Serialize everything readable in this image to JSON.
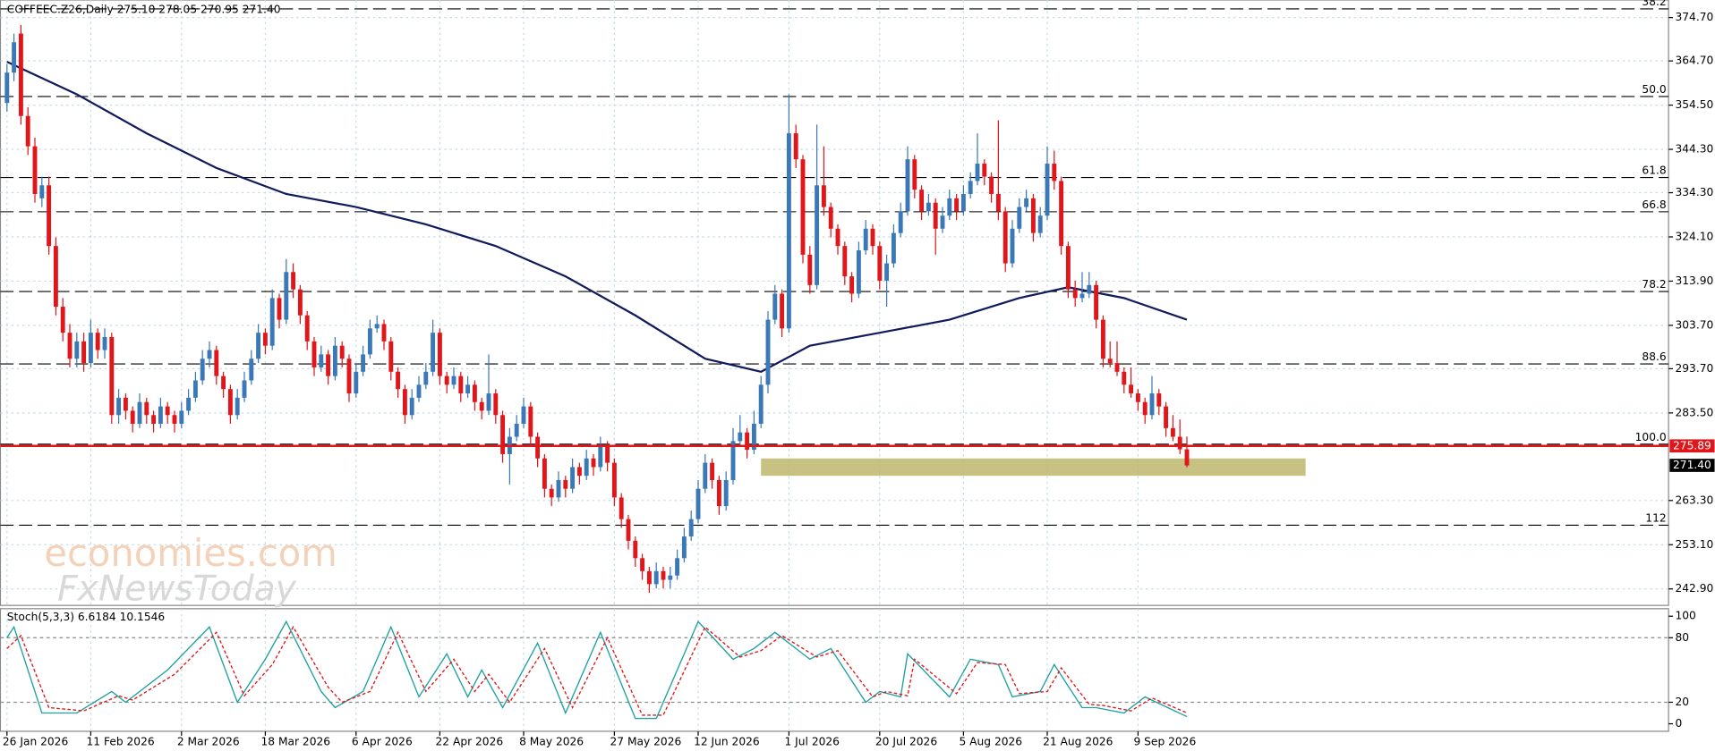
{
  "chart_data": {
    "type": "candlestick",
    "title": "COFFEEC.Z26,Daily  275.10 278.05 270.95 271.40",
    "watermark": [
      "economies.com",
      "FxNewsToday"
    ],
    "categories": [
      "26 Jan 2026",
      null,
      null,
      null,
      null,
      null,
      null,
      null,
      null,
      null,
      null,
      null,
      "11 Feb 2026",
      null,
      null,
      null,
      null,
      null,
      null,
      null,
      null,
      null,
      null,
      null,
      null,
      "2 Mar 2026",
      null,
      null,
      null,
      null,
      null,
      null,
      null,
      null,
      null,
      null,
      null,
      "18 Mar 2026",
      null,
      null,
      null,
      null,
      null,
      null,
      null,
      null,
      null,
      null,
      null,
      null,
      "6 Apr 2026",
      null,
      null,
      null,
      null,
      null,
      null,
      null,
      null,
      null,
      null,
      null,
      "22 Apr 2026",
      null,
      null,
      null,
      null,
      null,
      null,
      null,
      null,
      null,
      null,
      null,
      "8 May 2026",
      null,
      null,
      null,
      null,
      null,
      null,
      null,
      null,
      null,
      null,
      null,
      null,
      "27 May 2026",
      null,
      null,
      null,
      null,
      null,
      null,
      null,
      null,
      null,
      null,
      null,
      "12 Jun 2026",
      null,
      null,
      null,
      null,
      null,
      null,
      null,
      null,
      null,
      null,
      null,
      null,
      "1 Jul 2026",
      null,
      null,
      null,
      null,
      null,
      null,
      null,
      null,
      null,
      null,
      null,
      null,
      "20 Jul 2026",
      null,
      null,
      null,
      null,
      null,
      null,
      null,
      null,
      null,
      null,
      null,
      "5 Aug 2026",
      null,
      null,
      null,
      null,
      null,
      null,
      null,
      null,
      null,
      null,
      null,
      "21 Aug 2026",
      null,
      null,
      null,
      null,
      null,
      null,
      null,
      null,
      null,
      null,
      null,
      null,
      "9 Sep 2026",
      null,
      null,
      null,
      null,
      null,
      null,
      null
    ],
    "candles": [
      [
        355,
        364,
        353,
        362
      ],
      [
        362,
        371,
        360,
        369
      ],
      [
        371,
        373,
        350,
        352
      ],
      [
        352,
        354,
        343,
        345
      ],
      [
        345,
        347,
        332,
        334
      ],
      [
        333,
        338,
        331,
        336
      ],
      [
        336,
        338,
        320,
        322
      ],
      [
        322,
        324,
        306,
        308
      ],
      [
        308,
        310,
        300,
        302
      ],
      [
        302,
        304,
        294,
        296
      ],
      [
        296,
        302,
        294,
        300
      ],
      [
        300,
        302,
        293,
        295
      ],
      [
        295,
        305,
        294,
        302
      ],
      [
        302,
        303,
        296,
        298
      ],
      [
        298,
        303,
        296,
        301
      ],
      [
        301,
        302,
        281,
        283
      ],
      [
        283,
        289,
        281,
        287
      ],
      [
        287,
        288,
        282,
        284
      ],
      [
        284,
        285,
        279,
        281
      ],
      [
        281,
        288,
        280,
        286
      ],
      [
        286,
        287,
        281,
        283
      ],
      [
        283,
        284,
        279,
        281
      ],
      [
        281,
        287,
        280,
        285
      ],
      [
        285,
        286,
        281,
        283
      ],
      [
        283,
        284,
        279,
        281
      ],
      [
        281,
        286,
        280,
        284
      ],
      [
        284,
        289,
        283,
        287
      ],
      [
        287,
        293,
        286,
        291
      ],
      [
        291,
        298,
        290,
        296
      ],
      [
        296,
        300,
        294,
        298
      ],
      [
        298,
        299,
        290,
        292
      ],
      [
        292,
        293,
        287,
        289
      ],
      [
        289,
        290,
        281,
        283
      ],
      [
        283,
        289,
        282,
        287
      ],
      [
        287,
        293,
        286,
        291
      ],
      [
        291,
        298,
        290,
        296
      ],
      [
        296,
        304,
        295,
        302
      ],
      [
        302,
        303,
        297,
        299
      ],
      [
        299,
        312,
        298,
        310
      ],
      [
        310,
        311,
        303,
        305
      ],
      [
        305,
        319,
        304,
        316
      ],
      [
        316,
        318,
        310,
        312
      ],
      [
        312,
        313,
        304,
        306
      ],
      [
        306,
        307,
        298,
        300
      ],
      [
        300,
        301,
        292,
        294
      ],
      [
        294,
        299,
        293,
        297
      ],
      [
        297,
        298,
        290,
        292
      ],
      [
        292,
        301,
        291,
        299
      ],
      [
        299,
        300,
        294,
        296
      ],
      [
        296,
        297,
        286,
        288
      ],
      [
        288,
        295,
        287,
        293
      ],
      [
        293,
        299,
        292,
        297
      ],
      [
        297,
        305,
        296,
        303
      ],
      [
        303,
        306,
        302,
        304
      ],
      [
        304,
        305,
        298,
        300
      ],
      [
        300,
        301,
        291,
        293
      ],
      [
        293,
        294,
        287,
        289
      ],
      [
        289,
        290,
        281,
        283
      ],
      [
        283,
        289,
        282,
        287
      ],
      [
        287,
        292,
        286,
        290
      ],
      [
        290,
        295,
        289,
        293
      ],
      [
        293,
        305,
        292,
        302
      ],
      [
        302,
        303,
        290,
        292
      ],
      [
        292,
        293,
        288,
        290
      ],
      [
        290,
        294,
        289,
        292
      ],
      [
        292,
        293,
        286,
        288
      ],
      [
        288,
        292,
        287,
        290
      ],
      [
        290,
        291,
        284,
        286
      ],
      [
        286,
        287,
        282,
        284
      ],
      [
        284,
        297,
        283,
        288
      ],
      [
        288,
        289,
        281,
        283
      ],
      [
        283,
        284,
        272,
        274
      ],
      [
        274,
        280,
        267,
        278
      ],
      [
        278,
        283,
        277,
        281
      ],
      [
        281,
        287,
        280,
        285
      ],
      [
        285,
        286,
        276,
        278
      ],
      [
        278,
        279,
        271,
        273
      ],
      [
        273,
        274,
        264,
        266
      ],
      [
        266,
        267,
        262,
        264
      ],
      [
        264,
        270,
        263,
        268
      ],
      [
        268,
        269,
        264,
        266
      ],
      [
        266,
        273,
        265,
        271
      ],
      [
        271,
        272,
        267,
        269
      ],
      [
        269,
        275,
        268,
        273
      ],
      [
        273,
        274,
        269,
        271
      ],
      [
        271,
        278,
        270,
        276
      ],
      [
        276,
        277,
        270,
        272
      ],
      [
        272,
        273,
        262,
        264
      ],
      [
        264,
        265,
        257,
        259
      ],
      [
        259,
        260,
        252,
        254
      ],
      [
        254,
        255,
        248,
        250
      ],
      [
        250,
        251,
        245,
        247
      ],
      [
        247,
        248,
        242,
        244
      ],
      [
        244,
        249,
        243,
        247
      ],
      [
        247,
        248,
        243,
        245
      ],
      [
        245,
        248,
        243,
        246
      ],
      [
        246,
        252,
        245,
        250
      ],
      [
        250,
        257,
        249,
        255
      ],
      [
        255,
        261,
        254,
        259
      ],
      [
        259,
        268,
        258,
        266
      ],
      [
        266,
        274,
        265,
        272
      ],
      [
        272,
        273,
        266,
        268
      ],
      [
        268,
        269,
        260,
        262
      ],
      [
        262,
        270,
        261,
        268
      ],
      [
        268,
        280,
        267,
        277
      ],
      [
        277,
        283,
        276,
        279
      ],
      [
        279,
        280,
        273,
        275
      ],
      [
        275,
        284,
        274,
        281
      ],
      [
        281,
        292,
        280,
        290
      ],
      [
        290,
        307,
        288,
        305
      ],
      [
        305,
        313,
        304,
        311
      ],
      [
        311,
        312,
        301,
        303
      ],
      [
        303,
        357,
        302,
        348
      ],
      [
        348,
        350,
        340,
        342
      ],
      [
        342,
        343,
        318,
        320
      ],
      [
        320,
        322,
        311,
        313
      ],
      [
        313,
        350,
        312,
        336
      ],
      [
        336,
        345,
        329,
        331
      ],
      [
        331,
        332,
        324,
        326
      ],
      [
        326,
        327,
        320,
        322
      ],
      [
        322,
        323,
        313,
        315
      ],
      [
        315,
        316,
        309,
        311
      ],
      [
        311,
        323,
        310,
        321
      ],
      [
        321,
        328,
        320,
        326
      ],
      [
        326,
        327,
        320,
        322
      ],
      [
        322,
        323,
        312,
        314
      ],
      [
        314,
        320,
        308,
        318
      ],
      [
        318,
        327,
        317,
        325
      ],
      [
        325,
        332,
        324,
        330
      ],
      [
        330,
        345,
        329,
        342
      ],
      [
        342,
        343,
        333,
        335
      ],
      [
        335,
        336,
        328,
        330
      ],
      [
        330,
        334,
        329,
        332
      ],
      [
        332,
        333,
        320,
        326
      ],
      [
        326,
        331,
        325,
        329
      ],
      [
        329,
        335,
        328,
        333
      ],
      [
        333,
        334,
        328,
        330
      ],
      [
        330,
        336,
        329,
        334
      ],
      [
        334,
        339,
        333,
        337
      ],
      [
        337,
        348,
        336,
        341
      ],
      [
        341,
        342,
        336,
        338
      ],
      [
        338,
        339,
        332,
        334
      ],
      [
        334,
        351,
        328,
        330
      ],
      [
        330,
        331,
        316,
        318
      ],
      [
        318,
        328,
        317,
        326
      ],
      [
        326,
        333,
        325,
        331
      ],
      [
        331,
        335,
        330,
        333
      ],
      [
        333,
        334,
        323,
        325
      ],
      [
        325,
        331,
        324,
        329
      ],
      [
        329,
        345,
        328,
        341
      ],
      [
        341,
        344,
        335,
        337
      ],
      [
        337,
        338,
        320,
        322
      ],
      [
        322,
        323,
        310,
        312
      ],
      [
        312,
        314,
        308,
        310
      ],
      [
        310,
        316,
        309,
        311
      ],
      [
        311,
        316,
        310,
        313
      ],
      [
        313,
        314,
        303,
        305
      ],
      [
        305,
        306,
        294,
        296
      ],
      [
        296,
        300,
        294,
        295
      ],
      [
        295,
        300,
        292,
        293
      ],
      [
        293,
        294,
        288,
        290
      ],
      [
        290,
        294,
        287,
        288
      ],
      [
        288,
        289,
        284,
        286
      ],
      [
        286,
        287,
        281,
        283
      ],
      [
        283,
        292,
        282,
        288
      ],
      [
        288,
        289,
        283,
        285
      ],
      [
        285,
        286,
        278,
        280
      ],
      [
        280,
        283,
        277,
        278
      ],
      [
        278,
        282,
        274,
        275.1
      ],
      [
        275.1,
        278.05,
        270.95,
        271.4
      ]
    ],
    "up_color": "#3a78b8",
    "down_color": "#e0161b",
    "ylim": [
      239.1,
      378.75
    ],
    "yticks": [
      {
        "value": 374.7,
        "label": "374.70"
      },
      {
        "value": 364.7,
        "label": "364.70"
      },
      {
        "value": 354.5,
        "label": "354.50"
      },
      {
        "value": 344.3,
        "label": "344.30"
      },
      {
        "value": 334.3,
        "label": "334.30"
      },
      {
        "value": 324.1,
        "label": "324.10"
      },
      {
        "value": 313.9,
        "label": "313.90"
      },
      {
        "value": 303.7,
        "label": "303.70"
      },
      {
        "value": 293.7,
        "label": "293.70"
      },
      {
        "value": 283.5,
        "label": "283.50"
      },
      {
        "value": 263.3,
        "label": "263.30"
      },
      {
        "value": 253.1,
        "label": "253.10"
      },
      {
        "value": 242.9,
        "label": "242.90"
      }
    ],
    "grid": true,
    "moving_average": {
      "color": "#101a5c",
      "x": [
        0,
        10,
        20,
        30,
        40,
        50,
        60,
        70,
        80,
        90,
        100,
        108,
        115,
        125,
        135,
        145,
        152,
        160,
        169
      ],
      "values": [
        364.5,
        357,
        348,
        340,
        334,
        331,
        327,
        322,
        315,
        306,
        296,
        293,
        299,
        302,
        305,
        310,
        312.5,
        310,
        305
      ]
    },
    "fib_levels": [
      {
        "value": 376.7,
        "label": "38.2"
      },
      {
        "value": 356.5,
        "label": "50.0"
      },
      {
        "value": 337.8,
        "label": "61.8"
      },
      {
        "value": 329.9,
        "label": "66.8"
      },
      {
        "value": 311.5,
        "label": "78.2"
      },
      {
        "value": 294.8,
        "label": "88.6"
      },
      {
        "value": 276.3,
        "label": "100.0"
      },
      {
        "value": 257.6,
        "label": "112"
      }
    ],
    "level_line": {
      "value": 275.89,
      "color": "#e0161b"
    },
    "last_price": {
      "value": 271.4,
      "label": "271.40"
    },
    "zone": {
      "from": 269,
      "to": 273,
      "start": 108,
      "end": 186,
      "color": "#bdb76b"
    },
    "stochastic": {
      "title": "Stoch(5,3,3) 6.6184 10.1546",
      "ylim": [
        -7,
        107
      ],
      "yticks": [
        0,
        20,
        80,
        100
      ],
      "levels": [
        20,
        80
      ],
      "main": {
        "color": "#1ea0a0",
        "x": [
          0,
          1,
          5,
          10,
          15,
          17,
          23,
          29,
          33,
          37,
          40,
          45,
          47,
          51,
          55,
          59,
          63,
          66,
          68,
          71,
          76,
          80,
          85,
          90,
          93,
          99,
          104,
          107,
          110,
          115,
          118,
          123,
          125,
          128,
          129,
          135,
          138,
          142,
          144,
          148,
          150,
          154,
          156,
          160,
          163,
          169
        ],
        "values": [
          80,
          90,
          10,
          10,
          30,
          20,
          50,
          90,
          20,
          60,
          95,
          30,
          15,
          30,
          90,
          25,
          65,
          25,
          50,
          15,
          75,
          10,
          85,
          5,
          5,
          95,
          60,
          70,
          85,
          60,
          70,
          20,
          30,
          25,
          65,
          25,
          60,
          55,
          25,
          30,
          55,
          15,
          15,
          10,
          25,
          6.6184
        ]
      },
      "signal": {
        "color": "#e0161b",
        "x": [
          0,
          2,
          6,
          11,
          16,
          18,
          24,
          30,
          34,
          38,
          41,
          46,
          48,
          52,
          56,
          60,
          64,
          67,
          69,
          72,
          77,
          81,
          86,
          91,
          94,
          100,
          105,
          108,
          111,
          116,
          119,
          124,
          126,
          129,
          130,
          136,
          139,
          143,
          145,
          149,
          151,
          155,
          157,
          161,
          164,
          169
        ],
        "values": [
          70,
          82,
          15,
          12,
          26,
          22,
          46,
          85,
          26,
          55,
          90,
          34,
          20,
          30,
          85,
          30,
          60,
          30,
          46,
          20,
          70,
          15,
          80,
          8,
          8,
          90,
          62,
          68,
          82,
          62,
          68,
          25,
          30,
          26,
          60,
          28,
          57,
          55,
          28,
          30,
          52,
          18,
          17,
          12,
          24,
          10.1546
        ]
      }
    }
  }
}
